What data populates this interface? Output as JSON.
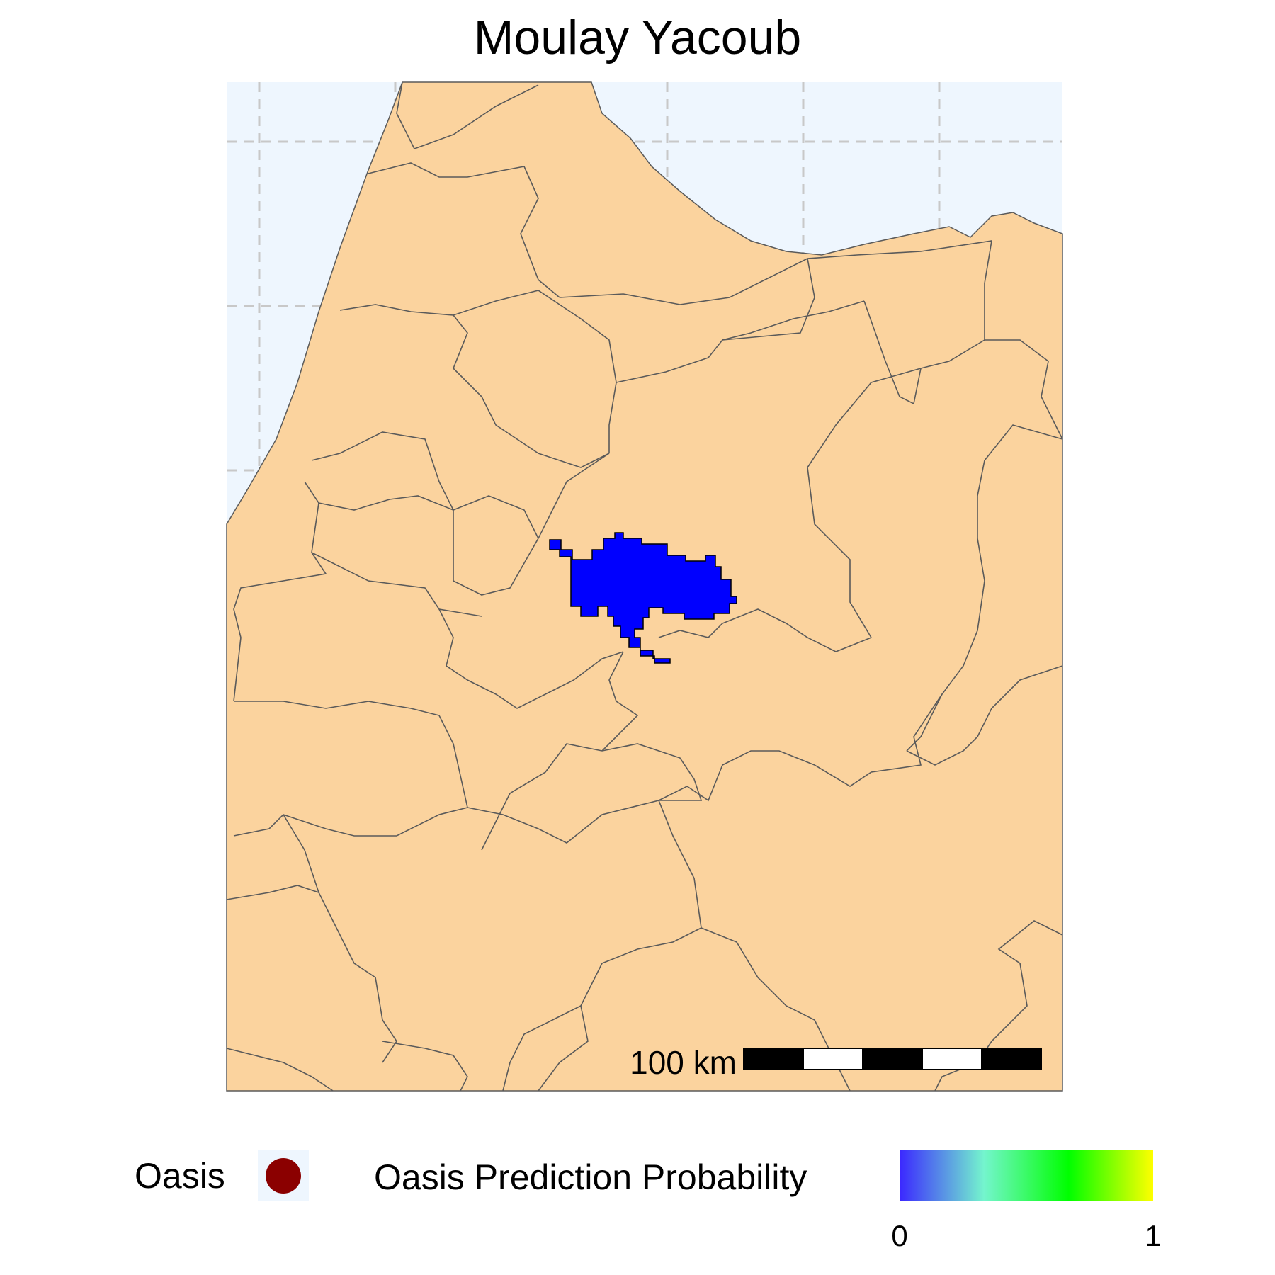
{
  "title": "Moulay Yacoub",
  "map": {
    "sea_color": "#eef6fe",
    "land_color": "#fbd39e",
    "border_color": "#5a5a5a",
    "prediction_color": "#0000ff",
    "grid": "dashed",
    "scale_bar": {
      "label": "100 km",
      "segments": 5
    }
  },
  "legend": {
    "oasis": {
      "label": "Oasis",
      "color": "#8b0000"
    },
    "probability": {
      "label": "Oasis Prediction Probability",
      "min_label": "0",
      "max_label": "1",
      "colors": [
        "#3b28ff",
        "#74f5cd",
        "#00ff00",
        "#ffff00"
      ]
    }
  }
}
